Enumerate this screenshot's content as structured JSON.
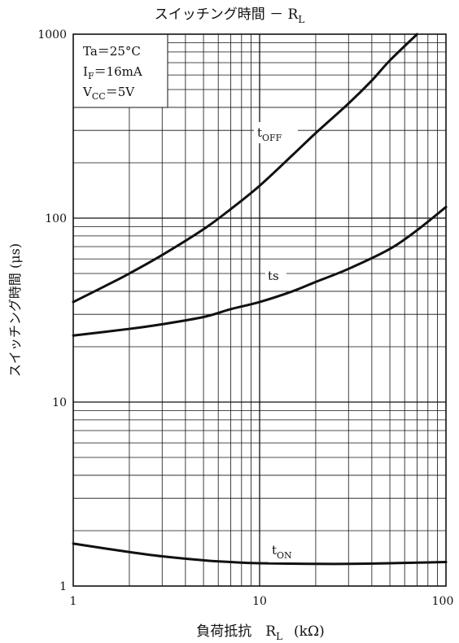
{
  "chart_data": {
    "type": "line",
    "title": "スイッチング時間 － R",
    "title_sub": "L",
    "xlabel": "負荷抵抗　R",
    "xlabel_sub": "L",
    "xlabel_unit": "(kΩ)",
    "ylabel": "スイッチング時間 (μs)",
    "x_scale": "log",
    "y_scale": "log",
    "xlim": [
      1,
      100
    ],
    "ylim": [
      1,
      1000
    ],
    "x_ticks": [
      "1",
      "10",
      "100"
    ],
    "y_ticks": [
      "1",
      "10",
      "100",
      "1000"
    ],
    "grid": true,
    "conditions": {
      "ta": "Ta＝25°C",
      "if_main": "I",
      "if_sub": "F",
      "if_val": "＝16mA",
      "vcc_main": "V",
      "vcc_sub": "CC",
      "vcc_val": "＝5V"
    },
    "series": [
      {
        "name": "tOFF",
        "label_main": "t",
        "label_sub": "OFF",
        "x": [
          1,
          1.5,
          2,
          3,
          5,
          7,
          10,
          15,
          20,
          30,
          40,
          50,
          70
        ],
        "values": [
          35,
          43,
          50,
          63,
          87,
          112,
          150,
          220,
          290,
          420,
          560,
          720,
          1000
        ]
      },
      {
        "name": "ts",
        "label_main": "ts",
        "label_sub": "",
        "x": [
          1,
          2,
          3,
          5,
          7,
          10,
          15,
          20,
          30,
          50,
          70,
          100
        ],
        "values": [
          23,
          25,
          26.5,
          29,
          32,
          35,
          40,
          45,
          53,
          68,
          86,
          115
        ]
      },
      {
        "name": "tON",
        "label_main": "t",
        "label_sub": "ON",
        "x": [
          1,
          2,
          3,
          5,
          7,
          10,
          20,
          30,
          50,
          70,
          100
        ],
        "values": [
          1.7,
          1.53,
          1.45,
          1.38,
          1.35,
          1.33,
          1.32,
          1.32,
          1.33,
          1.34,
          1.35
        ]
      }
    ]
  }
}
